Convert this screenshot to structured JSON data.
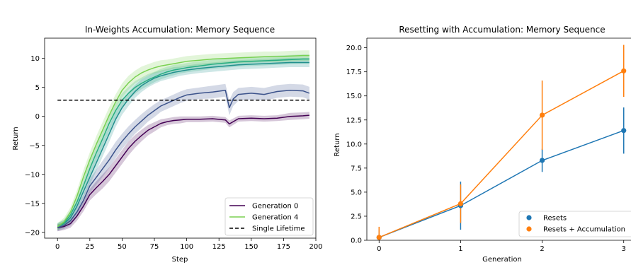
{
  "chart_data": [
    {
      "type": "line",
      "title": "In-Weights Accumulation: Memory Sequence",
      "xlabel": "Step",
      "ylabel": "Return",
      "xlim": [
        -10,
        200
      ],
      "ylim": [
        -21,
        13.5
      ],
      "xticks": [
        0,
        25,
        50,
        75,
        100,
        125,
        150,
        175,
        200
      ],
      "yticks": [
        -20,
        -15,
        -10,
        -5,
        0,
        5,
        10
      ],
      "grid": false,
      "legend_position": "bottom-right",
      "legend": [
        "Generation 0",
        "Generation 4",
        "Single Lifetime"
      ],
      "reference_line": {
        "name": "Single Lifetime",
        "y": 2.8,
        "x": [
          0,
          195
        ],
        "color": "#000000",
        "style": "dashed"
      },
      "series": [
        {
          "name": "Generation 0",
          "color": "#440154",
          "x": [
            0,
            5,
            10,
            15,
            20,
            25,
            30,
            35,
            40,
            45,
            50,
            55,
            60,
            65,
            70,
            75,
            80,
            85,
            90,
            95,
            100,
            110,
            120,
            130,
            133,
            140,
            150,
            160,
            170,
            180,
            190,
            195
          ],
          "values": [
            -19.2,
            -19.0,
            -18.5,
            -17.2,
            -15.5,
            -13.5,
            -12.3,
            -11.2,
            -10.0,
            -8.5,
            -7.0,
            -5.5,
            -4.3,
            -3.3,
            -2.4,
            -1.8,
            -1.2,
            -0.9,
            -0.7,
            -0.6,
            -0.5,
            -0.5,
            -0.4,
            -0.6,
            -1.3,
            -0.4,
            -0.3,
            -0.4,
            -0.3,
            0.0,
            0.1,
            0.2
          ],
          "band": [
            0.6,
            0.6,
            0.7,
            0.8,
            0.9,
            1.0,
            1.1,
            1.2,
            1.2,
            1.2,
            1.2,
            1.2,
            1.1,
            1.0,
            0.9,
            0.8,
            0.7,
            0.6,
            0.6,
            0.6,
            0.5,
            0.5,
            0.5,
            0.5,
            0.6,
            0.5,
            0.5,
            0.5,
            0.5,
            0.6,
            0.6,
            0.6
          ]
        },
        {
          "name": "",
          "color": "#3b528b",
          "x": [
            0,
            5,
            10,
            15,
            20,
            25,
            30,
            35,
            40,
            45,
            50,
            55,
            60,
            65,
            70,
            75,
            80,
            85,
            90,
            95,
            100,
            110,
            120,
            130,
            133,
            136,
            140,
            150,
            160,
            170,
            180,
            190,
            195
          ],
          "values": [
            -19.2,
            -18.8,
            -18.0,
            -16.5,
            -14.5,
            -12.0,
            -10.5,
            -9.0,
            -7.5,
            -5.8,
            -4.3,
            -3.0,
            -1.8,
            -0.8,
            0.2,
            1.0,
            1.8,
            2.3,
            2.8,
            3.3,
            3.7,
            4.0,
            4.2,
            4.5,
            1.5,
            3.0,
            3.8,
            4.0,
            3.8,
            4.3,
            4.5,
            4.4,
            4.0
          ],
          "band": [
            0.6,
            0.6,
            0.8,
            0.9,
            1.0,
            1.2,
            1.3,
            1.4,
            1.4,
            1.4,
            1.3,
            1.3,
            1.2,
            1.2,
            1.1,
            1.1,
            1.0,
            1.0,
            1.0,
            1.0,
            1.0,
            1.0,
            1.1,
            1.1,
            1.3,
            1.2,
            1.1,
            1.1,
            1.1,
            1.1,
            1.1,
            1.1,
            1.1
          ]
        },
        {
          "name": "",
          "color": "#21908d",
          "x": [
            0,
            5,
            10,
            15,
            20,
            25,
            30,
            35,
            40,
            45,
            50,
            55,
            60,
            65,
            70,
            75,
            80,
            85,
            90,
            95,
            100,
            110,
            120,
            130,
            140,
            150,
            160,
            170,
            180,
            190,
            195
          ],
          "values": [
            -19.0,
            -18.5,
            -17.5,
            -15.5,
            -13.0,
            -10.5,
            -8.0,
            -5.5,
            -3.0,
            -0.5,
            1.5,
            3.0,
            4.3,
            5.3,
            6.0,
            6.6,
            7.0,
            7.3,
            7.6,
            7.8,
            8.0,
            8.3,
            8.5,
            8.7,
            8.9,
            9.0,
            9.1,
            9.2,
            9.3,
            9.3,
            9.3
          ],
          "band": [
            0.6,
            0.6,
            0.8,
            1.0,
            1.1,
            1.3,
            1.4,
            1.4,
            1.4,
            1.3,
            1.2,
            1.2,
            1.1,
            1.1,
            1.0,
            1.0,
            0.9,
            0.9,
            0.9,
            0.8,
            0.8,
            0.8,
            0.8,
            0.8,
            0.8,
            0.8,
            0.8,
            0.8,
            0.8,
            0.8,
            0.8
          ]
        },
        {
          "name": "",
          "color": "#27ad81",
          "x": [
            0,
            5,
            10,
            15,
            20,
            25,
            30,
            35,
            40,
            45,
            50,
            55,
            60,
            65,
            70,
            75,
            80,
            85,
            90,
            95,
            100,
            110,
            120,
            130,
            140,
            150,
            160,
            170,
            180,
            190,
            195
          ],
          "values": [
            -19.0,
            -18.4,
            -17.0,
            -14.8,
            -12.0,
            -9.0,
            -6.3,
            -3.8,
            -1.2,
            1.0,
            2.8,
            4.0,
            5.0,
            5.7,
            6.3,
            6.8,
            7.3,
            7.7,
            8.0,
            8.2,
            8.4,
            8.7,
            9.0,
            9.2,
            9.4,
            9.5,
            9.6,
            9.7,
            9.8,
            9.9,
            9.9
          ],
          "band": [
            0.6,
            0.6,
            0.8,
            1.0,
            1.1,
            1.3,
            1.4,
            1.4,
            1.4,
            1.3,
            1.2,
            1.1,
            1.1,
            1.0,
            1.0,
            0.9,
            0.9,
            0.9,
            0.9,
            0.8,
            0.8,
            0.8,
            0.8,
            0.8,
            0.8,
            0.8,
            0.8,
            0.8,
            0.8,
            0.8,
            0.8
          ]
        },
        {
          "name": "Generation 4",
          "color": "#7ad151",
          "x": [
            0,
            5,
            10,
            15,
            20,
            25,
            30,
            35,
            40,
            45,
            50,
            55,
            60,
            65,
            70,
            75,
            80,
            85,
            90,
            95,
            100,
            110,
            120,
            130,
            140,
            150,
            160,
            170,
            180,
            190,
            195
          ],
          "values": [
            -19.0,
            -18.2,
            -16.5,
            -13.8,
            -10.5,
            -7.5,
            -4.8,
            -2.3,
            0.2,
            2.5,
            4.5,
            5.8,
            6.8,
            7.5,
            8.0,
            8.4,
            8.7,
            8.9,
            9.1,
            9.3,
            9.5,
            9.7,
            9.9,
            10.0,
            10.1,
            10.2,
            10.3,
            10.3,
            10.4,
            10.5,
            10.5
          ],
          "band": [
            0.6,
            0.7,
            0.8,
            1.0,
            1.2,
            1.3,
            1.4,
            1.4,
            1.4,
            1.3,
            1.2,
            1.2,
            1.1,
            1.1,
            1.0,
            1.0,
            1.0,
            0.9,
            0.9,
            0.9,
            0.9,
            0.9,
            0.9,
            0.9,
            0.9,
            0.9,
            0.9,
            0.9,
            0.9,
            0.9,
            0.9
          ]
        }
      ]
    },
    {
      "type": "line",
      "title": "Resetting with Accumulation: Memory Sequence",
      "xlabel": "Generation",
      "ylabel": "Return",
      "xlim": [
        -0.15,
        3.15
      ],
      "ylim": [
        0,
        21
      ],
      "xticks": [
        0,
        1,
        2,
        3
      ],
      "yticks": [
        0.0,
        2.5,
        5.0,
        7.5,
        10.0,
        12.5,
        15.0,
        17.5,
        20.0
      ],
      "grid": false,
      "legend_position": "bottom-right",
      "categories": [
        0,
        1,
        2,
        3
      ],
      "series": [
        {
          "name": "Resets",
          "color": "#1f77b4",
          "values": [
            0.3,
            3.6,
            8.3,
            11.4
          ],
          "err": [
            0.8,
            2.5,
            1.2,
            2.4
          ]
        },
        {
          "name": "Resets + Accumulation",
          "color": "#ff7f0e",
          "values": [
            0.3,
            3.8,
            13.0,
            17.6
          ],
          "err": [
            1.1,
            2.0,
            3.6,
            2.7
          ]
        }
      ]
    }
  ]
}
